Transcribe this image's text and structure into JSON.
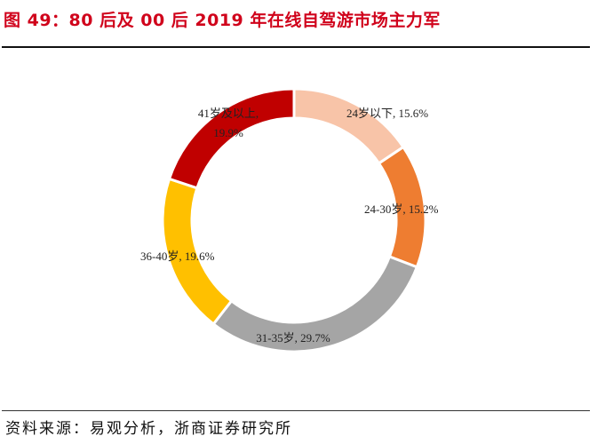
{
  "title": "图 49：80 后及 00 后 2019 年在线自驾游市场主力军",
  "source": "资料来源：易观分析，浙商证券研究所",
  "chart_data": {
    "type": "pie",
    "variant": "donut",
    "title": "图 49：80 后及 00 后 2019 年在线自驾游市场主力军",
    "start": "top",
    "direction": "clockwise",
    "slices": [
      {
        "label": "24岁以下",
        "value": 15.6,
        "display": "24岁以下, 15.6%",
        "color": "#F8C4A8"
      },
      {
        "label": "24-30岁",
        "value": 15.2,
        "display": "24-30岁, 15.2%",
        "color": "#EE7D31"
      },
      {
        "label": "31-35岁",
        "value": 29.7,
        "display": "31-35岁, 29.7%",
        "color": "#A5A5A5"
      },
      {
        "label": "36-40岁",
        "value": 19.6,
        "display": "36-40岁, 19.6%",
        "color": "#FFC000"
      },
      {
        "label": "41岁及以上",
        "value": 19.9,
        "display": "41岁及以上, 19.9%",
        "color": "#C00000"
      }
    ]
  }
}
